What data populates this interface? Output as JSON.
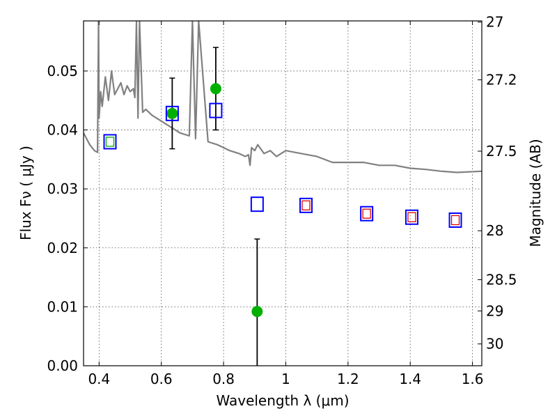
{
  "chart_data": {
    "type": "scatter",
    "title": "",
    "xlabel": "Wavelength  λ (μm)",
    "ylabel": "Flux  Fν  ( μJy )",
    "y2label": "Magnitude (AB)",
    "xlim": [
      0.35,
      1.63
    ],
    "ylim": [
      0.0,
      0.0585
    ],
    "grid": true,
    "legend": "none",
    "x_ticks": [
      0.4,
      0.6,
      0.8,
      1.0,
      1.2,
      1.4,
      1.6
    ],
    "x_tick_labels": [
      "0.4",
      "0.6",
      "0.8",
      "1",
      "1.2",
      "1.4",
      "1.6"
    ],
    "y_ticks": [
      0.0,
      0.01,
      0.02,
      0.03,
      0.04,
      0.05
    ],
    "y_tick_labels": [
      "0.00",
      "0.01",
      "0.02",
      "0.03",
      "0.04",
      "0.05"
    ],
    "y2_ticks": [
      {
        "label": "27",
        "flux": 0.0583
      },
      {
        "label": "27.2",
        "flux": 0.0485
      },
      {
        "label": "27.5",
        "flux": 0.0364
      },
      {
        "label": "28",
        "flux": 0.0229
      },
      {
        "label": "28.5",
        "flux": 0.0146
      },
      {
        "label": "29",
        "flux": 0.0093
      },
      {
        "label": "30",
        "flux": 0.0037
      }
    ],
    "series": [
      {
        "kind": "line",
        "color": "#808080",
        "x": [
          0.35,
          0.37,
          0.385,
          0.395,
          0.398,
          0.4,
          0.405,
          0.41,
          0.42,
          0.43,
          0.44,
          0.45,
          0.47,
          0.48,
          0.49,
          0.5,
          0.51,
          0.515,
          0.52,
          0.525,
          0.53,
          0.54,
          0.55,
          0.57,
          0.6,
          0.63,
          0.66,
          0.69,
          0.7,
          0.71,
          0.72,
          0.75,
          0.78,
          0.8,
          0.82,
          0.85,
          0.87,
          0.88,
          0.885,
          0.89,
          0.9,
          0.91,
          0.93,
          0.95,
          0.97,
          1.0,
          1.05,
          1.1,
          1.15,
          1.2,
          1.25,
          1.3,
          1.35,
          1.4,
          1.45,
          1.5,
          1.55,
          1.63
        ],
        "y": [
          0.0395,
          0.0375,
          0.0365,
          0.0362,
          0.0585,
          0.042,
          0.0465,
          0.044,
          0.049,
          0.045,
          0.05,
          0.046,
          0.048,
          0.046,
          0.0475,
          0.0465,
          0.047,
          0.0455,
          0.0585,
          0.042,
          0.0585,
          0.043,
          0.0435,
          0.0425,
          0.0415,
          0.0405,
          0.0395,
          0.039,
          0.0585,
          0.0385,
          0.0585,
          0.038,
          0.0375,
          0.037,
          0.0365,
          0.036,
          0.0355,
          0.0358,
          0.034,
          0.037,
          0.0365,
          0.0375,
          0.036,
          0.0365,
          0.0355,
          0.0365,
          0.036,
          0.0355,
          0.0345,
          0.0345,
          0.0345,
          0.034,
          0.034,
          0.0335,
          0.0333,
          0.033,
          0.0328,
          0.033
        ]
      },
      {
        "kind": "points-with-errors",
        "color": "#00b000",
        "x": [
          0.635,
          0.775,
          0.908
        ],
        "y": [
          0.0428,
          0.047,
          0.0092
        ],
        "yerr": [
          0.006,
          0.007,
          0.0123
        ]
      },
      {
        "kind": "open-squares",
        "color": "#0000ff",
        "x": [
          0.435,
          0.635,
          0.775,
          0.908,
          1.065,
          1.26,
          1.405,
          1.545
        ],
        "y": [
          0.038,
          0.0428,
          0.0433,
          0.0274,
          0.0272,
          0.0258,
          0.0252,
          0.0247
        ]
      },
      {
        "kind": "small-open-squares",
        "color": "#e00000",
        "x": [
          1.065,
          1.26,
          1.405,
          1.545
        ],
        "y": [
          0.0272,
          0.0258,
          0.0252,
          0.0247
        ]
      },
      {
        "kind": "small-open-squares",
        "color": "#00b000",
        "x": [
          0.435
        ],
        "y": [
          0.038
        ]
      }
    ]
  }
}
